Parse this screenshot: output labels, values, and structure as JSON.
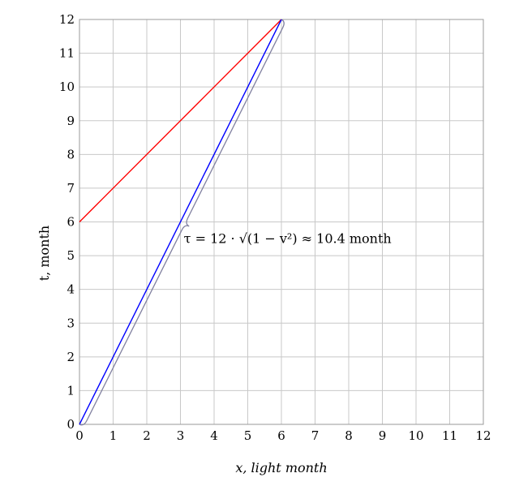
{
  "chart_data": {
    "type": "line",
    "xlabel": "x, light month",
    "ylabel": "t, month",
    "xlim": [
      0,
      12
    ],
    "ylim": [
      0,
      12
    ],
    "xticks": [
      0,
      1,
      2,
      3,
      4,
      5,
      6,
      7,
      8,
      9,
      10,
      11,
      12
    ],
    "yticks": [
      0,
      1,
      2,
      3,
      4,
      5,
      6,
      7,
      8,
      9,
      10,
      11,
      12
    ],
    "grid": true,
    "series": [
      {
        "color": "#ff0000",
        "x": [
          0,
          6
        ],
        "y": [
          6,
          12
        ]
      },
      {
        "color": "#0000ff",
        "x": [
          0,
          6
        ],
        "y": [
          0,
          12
        ]
      }
    ],
    "brace": {
      "color": "#8080a0",
      "from": [
        0,
        0
      ],
      "to": [
        6,
        12
      ]
    },
    "annotations": [
      {
        "text": "τ = 12 · √(1 − v²) ≈ 10.4 month",
        "x": 3.1,
        "y": 5.5
      }
    ]
  }
}
